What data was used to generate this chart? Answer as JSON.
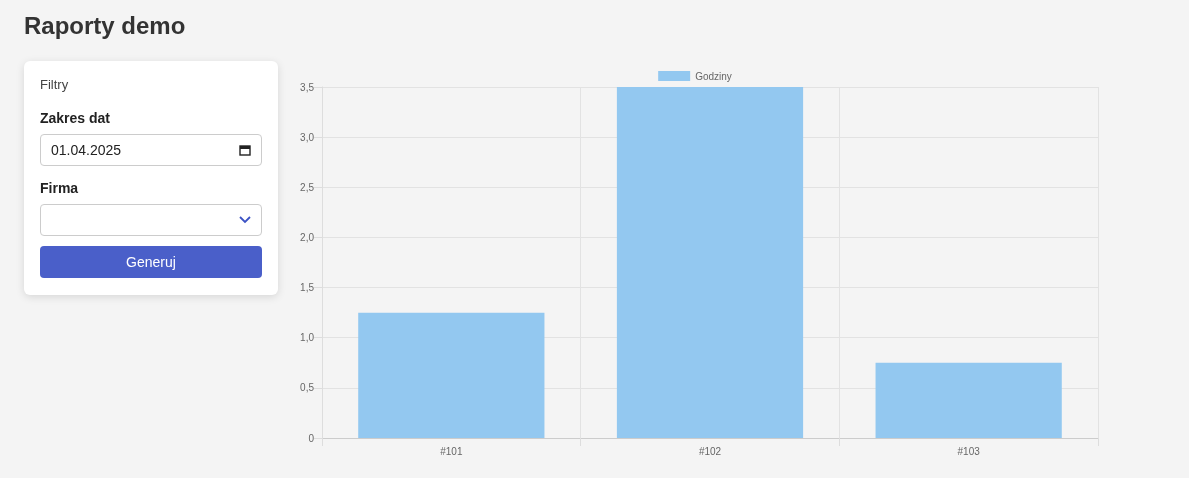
{
  "chart_data": [
    {
      "type": "other",
      "title": "Filtry",
      "annotations": [
        "Zakres dat",
        "01.04.2025",
        "Firma",
        "Generuj"
      ]
    },
    {
      "type": "bar",
      "title": "Raporty demo",
      "categories": [
        "#101",
        "#102",
        "#103"
      ],
      "series": [
        {
          "name": "Godziny",
          "color": "#93c8f0",
          "values": [
            1.25,
            3.5,
            0.75
          ]
        }
      ],
      "ylim": [
        0,
        3.5
      ],
      "yticks": [
        0,
        {
          "value": 0.5,
          "label": "0,5"
        },
        {
          "value": 1,
          "label": "1,0"
        },
        {
          "value": 1.5,
          "label": "1,5"
        },
        {
          "value": 2,
          "label": "2,0"
        },
        {
          "value": 2.5,
          "label": "2,5"
        },
        {
          "value": 3,
          "label": "3,0"
        },
        {
          "value": 3.5,
          "label": "3,5"
        }
      ],
      "grid": true,
      "legend": "top"
    }
  ]
}
